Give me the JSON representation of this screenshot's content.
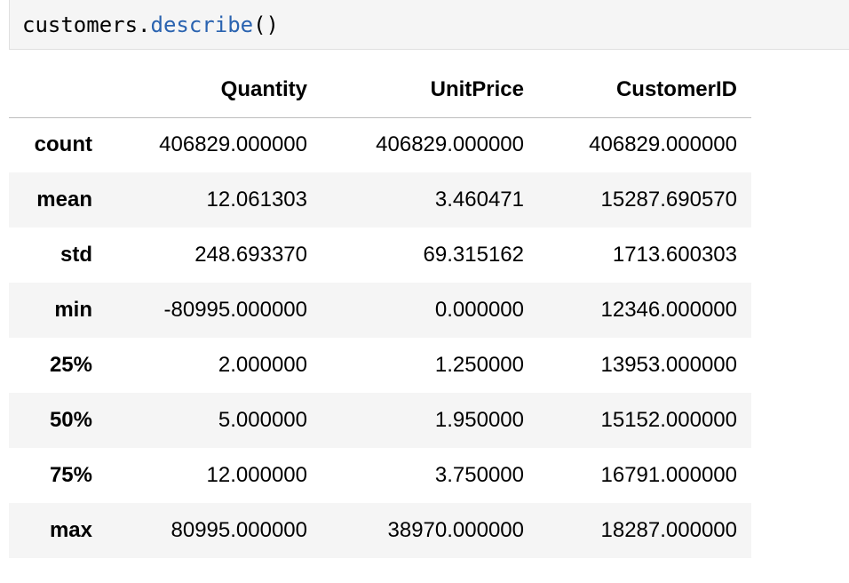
{
  "code_cell": {
    "object": "customers",
    "dot": ".",
    "method": "describe",
    "parens": "()"
  },
  "table": {
    "index_header": "",
    "columns": [
      "Quantity",
      "UnitPrice",
      "CustomerID"
    ],
    "rows": [
      {
        "label": "count",
        "values": [
          "406829.000000",
          "406829.000000",
          "406829.000000"
        ]
      },
      {
        "label": "mean",
        "values": [
          "12.061303",
          "3.460471",
          "15287.690570"
        ]
      },
      {
        "label": "std",
        "values": [
          "248.693370",
          "69.315162",
          "1713.600303"
        ]
      },
      {
        "label": "min",
        "values": [
          "-80995.000000",
          "0.000000",
          "12346.000000"
        ]
      },
      {
        "label": "25%",
        "values": [
          "2.000000",
          "1.250000",
          "13953.000000"
        ]
      },
      {
        "label": "50%",
        "values": [
          "5.000000",
          "1.950000",
          "15152.000000"
        ]
      },
      {
        "label": "75%",
        "values": [
          "12.000000",
          "3.750000",
          "16791.000000"
        ]
      },
      {
        "label": "max",
        "values": [
          "80995.000000",
          "38970.000000",
          "18287.000000"
        ]
      }
    ]
  },
  "colors": {
    "method_token": "#2a63b0",
    "cell_background": "#f5f5f5",
    "stripe_background": "#f5f5f5"
  }
}
